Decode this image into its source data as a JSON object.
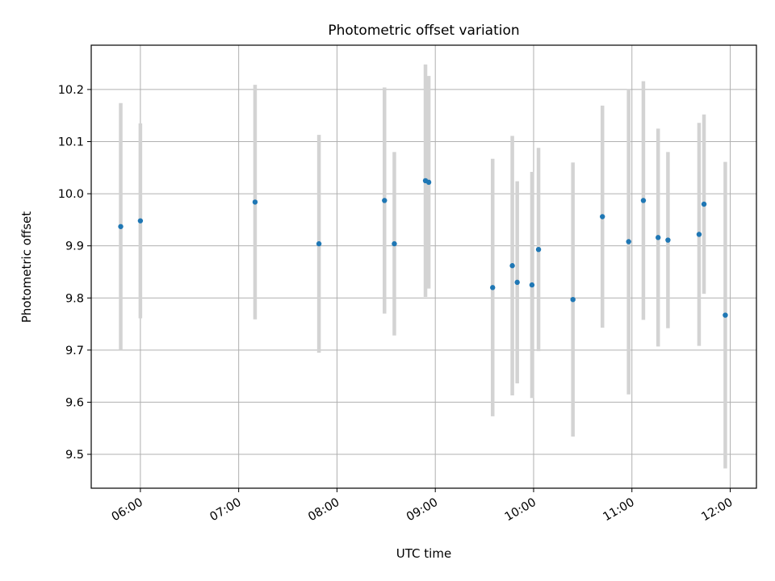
{
  "chart_data": {
    "type": "scatter",
    "title": "Photometric offset variation",
    "xlabel": "UTC time",
    "ylabel": "Photometric offset",
    "x_ticks": [
      "06:00",
      "07:00",
      "08:00",
      "09:00",
      "10:00",
      "11:00",
      "12:00"
    ],
    "y_ticks": [
      "9.5",
      "9.6",
      "9.7",
      "9.8",
      "9.9",
      "10.0",
      "10.1",
      "10.2"
    ],
    "xlim": [
      "05:30",
      "12:16"
    ],
    "ylim": [
      9.435,
      10.285
    ],
    "grid": true,
    "colors": {
      "point": "#1f77b4",
      "errorbar": "#d3d3d3",
      "grid": "#b0b0b0"
    },
    "points": [
      {
        "x": "05:48",
        "y": 9.937,
        "err": 0.237
      },
      {
        "x": "06:00",
        "y": 9.948,
        "err": 0.187
      },
      {
        "x": "07:10",
        "y": 9.984,
        "err": 0.225
      },
      {
        "x": "07:49",
        "y": 9.904,
        "err": 0.209
      },
      {
        "x": "08:29",
        "y": 9.987,
        "err": 0.217
      },
      {
        "x": "08:35",
        "y": 9.904,
        "err": 0.176
      },
      {
        "x": "08:54",
        "y": 10.025,
        "err": 0.223
      },
      {
        "x": "08:56",
        "y": 10.022,
        "err": 0.204
      },
      {
        "x": "09:35",
        "y": 9.82,
        "err": 0.247
      },
      {
        "x": "09:47",
        "y": 9.862,
        "err": 0.249
      },
      {
        "x": "09:50",
        "y": 9.83,
        "err": 0.194
      },
      {
        "x": "09:59",
        "y": 9.825,
        "err": 0.217
      },
      {
        "x": "10:03",
        "y": 9.893,
        "err": 0.195
      },
      {
        "x": "10:24",
        "y": 9.797,
        "err": 0.263
      },
      {
        "x": "10:42",
        "y": 9.956,
        "err": 0.213
      },
      {
        "x": "10:58",
        "y": 9.908,
        "err": 0.293
      },
      {
        "x": "11:07",
        "y": 9.987,
        "err": 0.229
      },
      {
        "x": "11:16",
        "y": 9.916,
        "err": 0.209
      },
      {
        "x": "11:22",
        "y": 9.911,
        "err": 0.169
      },
      {
        "x": "11:41",
        "y": 9.922,
        "err": 0.214
      },
      {
        "x": "11:44",
        "y": 9.98,
        "err": 0.172
      },
      {
        "x": "11:57",
        "y": 9.767,
        "err": 0.294
      }
    ]
  }
}
